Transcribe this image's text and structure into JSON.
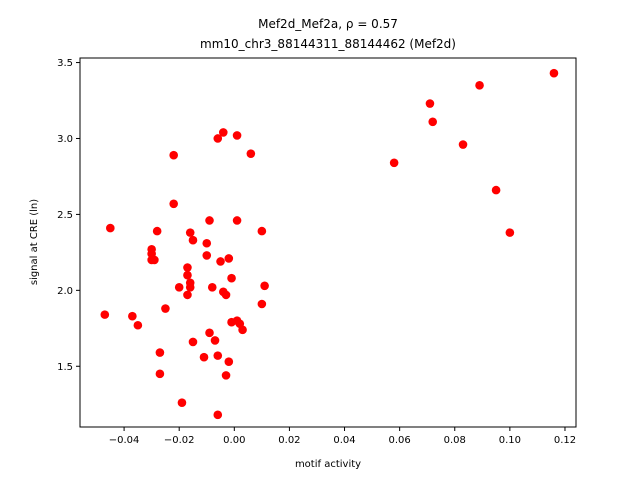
{
  "chart_data": {
    "type": "scatter",
    "title_line1": "Mef2d_Mef2a, ρ = 0.57",
    "title_line2": "mm10_chr3_88144311_88144462 (Mef2d)",
    "xlabel": "motif activity",
    "ylabel": "signal at CRE (ln)",
    "xlim": [
      -0.056,
      0.124
    ],
    "ylim": [
      1.1,
      3.53
    ],
    "xticks": [
      -0.04,
      -0.02,
      0.0,
      0.02,
      0.04,
      0.06,
      0.08,
      0.1,
      0.12
    ],
    "xtick_labels": [
      "−0.04",
      "−0.02",
      "0.00",
      "0.02",
      "0.04",
      "0.06",
      "0.08",
      "0.10",
      "0.12"
    ],
    "yticks": [
      1.5,
      2.0,
      2.5,
      3.0,
      3.5
    ],
    "ytick_labels": [
      "1.5",
      "2.0",
      "2.5",
      "3.0",
      "3.5"
    ],
    "marker_color": "#ff0000",
    "grid": false,
    "points": [
      {
        "x": -0.047,
        "y": 1.84
      },
      {
        "x": -0.045,
        "y": 2.41
      },
      {
        "x": -0.037,
        "y": 1.83
      },
      {
        "x": -0.035,
        "y": 1.77
      },
      {
        "x": -0.03,
        "y": 2.27
      },
      {
        "x": -0.03,
        "y": 2.24
      },
      {
        "x": -0.03,
        "y": 2.2
      },
      {
        "x": -0.029,
        "y": 2.2
      },
      {
        "x": -0.028,
        "y": 2.39
      },
      {
        "x": -0.027,
        "y": 1.59
      },
      {
        "x": -0.027,
        "y": 1.45
      },
      {
        "x": -0.025,
        "y": 1.88
      },
      {
        "x": -0.022,
        "y": 2.89
      },
      {
        "x": -0.022,
        "y": 2.57
      },
      {
        "x": -0.02,
        "y": 2.02
      },
      {
        "x": -0.019,
        "y": 1.26
      },
      {
        "x": -0.017,
        "y": 2.15
      },
      {
        "x": -0.017,
        "y": 2.1
      },
      {
        "x": -0.017,
        "y": 1.97
      },
      {
        "x": -0.016,
        "y": 2.38
      },
      {
        "x": -0.016,
        "y": 2.05
      },
      {
        "x": -0.016,
        "y": 2.02
      },
      {
        "x": -0.015,
        "y": 2.33
      },
      {
        "x": -0.015,
        "y": 1.66
      },
      {
        "x": -0.011,
        "y": 1.56
      },
      {
        "x": -0.01,
        "y": 2.31
      },
      {
        "x": -0.01,
        "y": 2.23
      },
      {
        "x": -0.009,
        "y": 1.72
      },
      {
        "x": -0.009,
        "y": 2.46
      },
      {
        "x": -0.008,
        "y": 2.02
      },
      {
        "x": -0.007,
        "y": 1.67
      },
      {
        "x": -0.006,
        "y": 3.0
      },
      {
        "x": -0.006,
        "y": 1.57
      },
      {
        "x": -0.006,
        "y": 1.18
      },
      {
        "x": -0.005,
        "y": 2.19
      },
      {
        "x": -0.004,
        "y": 3.04
      },
      {
        "x": -0.004,
        "y": 1.99
      },
      {
        "x": -0.003,
        "y": 1.97
      },
      {
        "x": -0.003,
        "y": 1.44
      },
      {
        "x": -0.002,
        "y": 1.53
      },
      {
        "x": -0.002,
        "y": 2.21
      },
      {
        "x": -0.001,
        "y": 2.08
      },
      {
        "x": -0.001,
        "y": 1.79
      },
      {
        "x": 0.001,
        "y": 1.8
      },
      {
        "x": 0.001,
        "y": 3.02
      },
      {
        "x": 0.001,
        "y": 2.46
      },
      {
        "x": 0.002,
        "y": 1.78
      },
      {
        "x": 0.003,
        "y": 1.74
      },
      {
        "x": 0.006,
        "y": 2.9
      },
      {
        "x": 0.01,
        "y": 2.39
      },
      {
        "x": 0.01,
        "y": 1.91
      },
      {
        "x": 0.011,
        "y": 2.03
      },
      {
        "x": 0.058,
        "y": 2.84
      },
      {
        "x": 0.071,
        "y": 3.23
      },
      {
        "x": 0.072,
        "y": 3.11
      },
      {
        "x": 0.083,
        "y": 2.96
      },
      {
        "x": 0.089,
        "y": 3.35
      },
      {
        "x": 0.095,
        "y": 2.66
      },
      {
        "x": 0.1,
        "y": 2.38
      },
      {
        "x": 0.116,
        "y": 3.43
      }
    ]
  }
}
